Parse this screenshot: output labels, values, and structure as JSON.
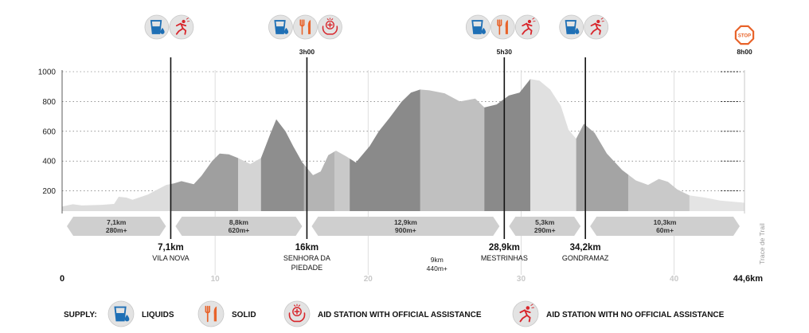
{
  "chart_data": {
    "type": "area",
    "title": "",
    "xlabel": "",
    "ylabel": "",
    "xlim": [
      0,
      44.6
    ],
    "ylim": [
      70,
      1020
    ],
    "y_ticks": [
      200,
      400,
      600,
      800,
      1000
    ],
    "x_ticks": [
      "0",
      "10",
      "20",
      "30",
      "40",
      "44,6km"
    ],
    "side_label": "Trace de Trail",
    "profile": [
      [
        0,
        95
      ],
      [
        0.7,
        110
      ],
      [
        1.3,
        102
      ],
      [
        2.6,
        106
      ],
      [
        3.4,
        112
      ],
      [
        3.7,
        160
      ],
      [
        4.2,
        155
      ],
      [
        4.6,
        140
      ],
      [
        5.6,
        175
      ],
      [
        6.8,
        240
      ],
      [
        7.3,
        250
      ],
      [
        7.8,
        265
      ],
      [
        8.6,
        245
      ],
      [
        9.1,
        300
      ],
      [
        9.8,
        400
      ],
      [
        10.3,
        450
      ],
      [
        10.9,
        445
      ],
      [
        11.5,
        420
      ],
      [
        12.3,
        380
      ],
      [
        13.0,
        420
      ],
      [
        13.6,
        580
      ],
      [
        14.0,
        680
      ],
      [
        14.6,
        600
      ],
      [
        15.1,
        500
      ],
      [
        15.7,
        390
      ],
      [
        16.4,
        305
      ],
      [
        16.9,
        330
      ],
      [
        17.4,
        440
      ],
      [
        17.9,
        470
      ],
      [
        18.6,
        430
      ],
      [
        19.2,
        390
      ],
      [
        20.1,
        500
      ],
      [
        20.7,
        600
      ],
      [
        21.4,
        690
      ],
      [
        22.2,
        800
      ],
      [
        22.8,
        860
      ],
      [
        23.4,
        880
      ],
      [
        24.0,
        875
      ],
      [
        25.0,
        855
      ],
      [
        26.0,
        800
      ],
      [
        27.0,
        820
      ],
      [
        27.6,
        760
      ],
      [
        28.4,
        780
      ],
      [
        29.2,
        840
      ],
      [
        29.9,
        860
      ],
      [
        30.6,
        950
      ],
      [
        31.2,
        940
      ],
      [
        31.9,
        880
      ],
      [
        32.6,
        770
      ],
      [
        33.1,
        610
      ],
      [
        33.6,
        550
      ],
      [
        34.1,
        650
      ],
      [
        34.8,
        590
      ],
      [
        35.6,
        450
      ],
      [
        36.6,
        340
      ],
      [
        37.5,
        270
      ],
      [
        38.3,
        240
      ],
      [
        39.0,
        280
      ],
      [
        39.6,
        260
      ],
      [
        40.2,
        210
      ],
      [
        41.0,
        170
      ],
      [
        42.0,
        155
      ],
      [
        43.0,
        135
      ],
      [
        44.6,
        120
      ]
    ],
    "shade_bands": [
      [
        0,
        7.1,
        "#dddddd"
      ],
      [
        7.1,
        11.5,
        "#9f9f9f"
      ],
      [
        11.5,
        13.0,
        "#d4d4d4"
      ],
      [
        13.0,
        15.8,
        "#8e8e8e"
      ],
      [
        15.8,
        17.8,
        "#b4b4b4"
      ],
      [
        17.8,
        18.8,
        "#c9c9c9"
      ],
      [
        18.8,
        23.4,
        "#8a8a8a"
      ],
      [
        23.4,
        27.6,
        "#c0c0c0"
      ],
      [
        27.6,
        30.6,
        "#8a8a8a"
      ],
      [
        30.6,
        33.6,
        "#e0e0e0"
      ],
      [
        33.6,
        37.0,
        "#a4a4a4"
      ],
      [
        37.0,
        41.0,
        "#c9c9c9"
      ],
      [
        41.0,
        44.6,
        "#e4e4e4"
      ]
    ],
    "segments": [
      {
        "from": 0,
        "to": 7.1,
        "distance": "7,1km",
        "gain": "280m+"
      },
      {
        "from": 7.1,
        "to": 16,
        "distance": "8,8km",
        "gain": "620m+"
      },
      {
        "from": 16,
        "to": 28.9,
        "distance": "12,9km",
        "gain": "900m+"
      },
      {
        "from": 28.9,
        "to": 34.2,
        "distance": "5,3km",
        "gain": "290m+"
      },
      {
        "from": 34.2,
        "to": 44.6,
        "distance": "10,3km",
        "gain": "60m+"
      }
    ],
    "stations": [
      {
        "km": 7.1,
        "label": "7,1km",
        "name": [
          "VILA NOVA"
        ],
        "time": "",
        "icons": [
          "liquids",
          "no-assistance"
        ]
      },
      {
        "km": 16,
        "label": "16km",
        "name": [
          "SENHORA DA",
          "PIEDADE"
        ],
        "time": "3h00",
        "icons": [
          "liquids",
          "solid",
          "assistance"
        ]
      },
      {
        "km": 28.9,
        "label": "28,9km",
        "name": [
          "MESTRINHAS"
        ],
        "time": "5h30",
        "icons": [
          "liquids",
          "solid",
          "no-assistance"
        ]
      },
      {
        "km": 34.2,
        "label": "34,2km",
        "name": [
          "GONDRAMAZ"
        ],
        "time": "",
        "icons": [
          "liquids",
          "no-assistance"
        ]
      }
    ],
    "finish": {
      "km": 44.6,
      "label": "STOP",
      "time": "8h00"
    },
    "note": {
      "km": 24.5,
      "lines": [
        "9km",
        "440m+"
      ]
    }
  },
  "legend": {
    "title": "SUPPLY:",
    "items": [
      {
        "icon": "liquids",
        "label": "LIQUIDS"
      },
      {
        "icon": "solid",
        "label": "SOLID"
      },
      {
        "icon": "assistance",
        "label": "AID STATION WITH OFFICIAL ASSISTANCE"
      },
      {
        "icon": "no-assistance",
        "label": "AID STATION WITH NO OFFICIAL ASSISTANCE"
      }
    ]
  },
  "colors": {
    "accent": "#e8632a",
    "water": "#1e6fb5",
    "red": "#d8252b"
  }
}
